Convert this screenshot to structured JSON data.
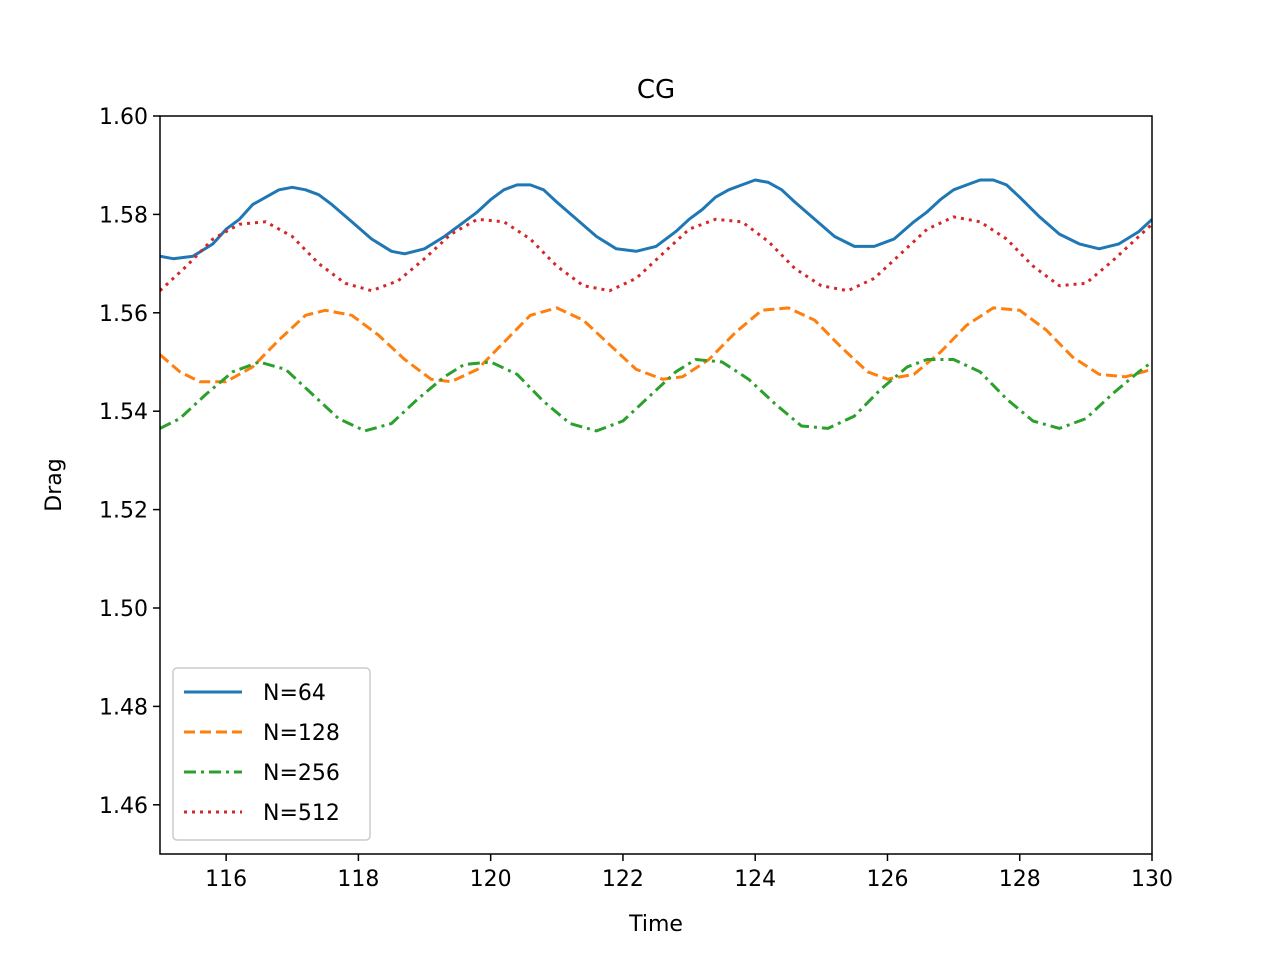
{
  "chart_data": {
    "type": "line",
    "title": "CG",
    "xlabel": "Time",
    "ylabel": "Drag",
    "xlim": [
      115,
      130
    ],
    "ylim": [
      1.45,
      1.6
    ],
    "xticks": [
      116,
      118,
      120,
      122,
      124,
      126,
      128,
      130
    ],
    "xtick_labels": [
      "116",
      "118",
      "120",
      "122",
      "124",
      "126",
      "128",
      "130"
    ],
    "yticks": [
      1.46,
      1.48,
      1.5,
      1.52,
      1.54,
      1.56,
      1.58,
      1.6
    ],
    "ytick_labels": [
      "1.46",
      "1.48",
      "1.50",
      "1.52",
      "1.54",
      "1.56",
      "1.58",
      "1.60"
    ],
    "grid": false,
    "legend_position": "lower-left",
    "series": [
      {
        "name": "N=64",
        "color": "#1f77b4",
        "dash": "solid",
        "x": [
          115.0,
          115.2,
          115.5,
          115.8,
          116.0,
          116.2,
          116.4,
          116.6,
          116.8,
          117.0,
          117.2,
          117.4,
          117.6,
          117.9,
          118.2,
          118.5,
          118.7,
          119.0,
          119.3,
          119.6,
          119.8,
          120.0,
          120.2,
          120.4,
          120.6,
          120.8,
          121.0,
          121.3,
          121.6,
          121.9,
          122.2,
          122.5,
          122.8,
          123.0,
          123.2,
          123.4,
          123.6,
          123.8,
          124.0,
          124.2,
          124.4,
          124.6,
          124.9,
          125.2,
          125.5,
          125.8,
          126.1,
          126.4,
          126.6,
          126.8,
          127.0,
          127.2,
          127.4,
          127.6,
          127.8,
          128.0,
          128.3,
          128.6,
          128.9,
          129.2,
          129.5,
          129.8,
          130.0
        ],
        "values": [
          1.5715,
          1.571,
          1.5715,
          1.574,
          1.577,
          1.579,
          1.582,
          1.5835,
          1.585,
          1.5855,
          1.585,
          1.584,
          1.582,
          1.5785,
          1.575,
          1.5725,
          1.572,
          1.573,
          1.5755,
          1.5785,
          1.5805,
          1.583,
          1.585,
          1.586,
          1.586,
          1.585,
          1.5825,
          1.579,
          1.5755,
          1.573,
          1.5725,
          1.5735,
          1.5765,
          1.579,
          1.581,
          1.5835,
          1.585,
          1.586,
          1.587,
          1.5865,
          1.585,
          1.5825,
          1.579,
          1.5755,
          1.5735,
          1.5735,
          1.575,
          1.5785,
          1.5805,
          1.583,
          1.585,
          1.586,
          1.587,
          1.587,
          1.586,
          1.5835,
          1.5795,
          1.576,
          1.574,
          1.573,
          1.574,
          1.5765,
          1.579
        ]
      },
      {
        "name": "N=128",
        "color": "#ff7f0e",
        "dash": "dashed",
        "x": [
          115.0,
          115.3,
          115.6,
          116.0,
          116.4,
          116.8,
          117.2,
          117.5,
          117.9,
          118.3,
          118.7,
          119.1,
          119.4,
          119.8,
          120.2,
          120.6,
          121.0,
          121.4,
          121.8,
          122.2,
          122.6,
          122.9,
          123.3,
          123.7,
          124.1,
          124.5,
          124.9,
          125.3,
          125.7,
          126.0,
          126.4,
          126.8,
          127.2,
          127.6,
          128.0,
          128.4,
          128.8,
          129.2,
          129.6,
          130.0
        ],
        "values": [
          1.5515,
          1.548,
          1.546,
          1.546,
          1.549,
          1.5545,
          1.5595,
          1.5605,
          1.5595,
          1.5555,
          1.5505,
          1.5465,
          1.546,
          1.5485,
          1.554,
          1.5595,
          1.561,
          1.5585,
          1.5535,
          1.5485,
          1.5465,
          1.547,
          1.5505,
          1.556,
          1.5605,
          1.561,
          1.5585,
          1.553,
          1.548,
          1.5465,
          1.5475,
          1.552,
          1.5575,
          1.561,
          1.5605,
          1.5565,
          1.551,
          1.5475,
          1.547,
          1.5485
        ]
      },
      {
        "name": "N=256",
        "color": "#2ca02c",
        "dash": "dashdot",
        "x": [
          115.0,
          115.3,
          115.7,
          116.1,
          116.5,
          116.9,
          117.3,
          117.7,
          118.1,
          118.5,
          118.9,
          119.3,
          119.6,
          120.0,
          120.4,
          120.8,
          121.2,
          121.6,
          122.0,
          122.4,
          122.8,
          123.1,
          123.5,
          123.9,
          124.3,
          124.7,
          125.1,
          125.5,
          125.9,
          126.3,
          126.6,
          127.0,
          127.4,
          127.8,
          128.2,
          128.6,
          129.0,
          129.4,
          129.8,
          130.0
        ],
        "values": [
          1.5365,
          1.5385,
          1.5435,
          1.548,
          1.55,
          1.5485,
          1.5435,
          1.5385,
          1.536,
          1.5375,
          1.5425,
          1.547,
          1.5495,
          1.55,
          1.5475,
          1.542,
          1.5375,
          1.536,
          1.538,
          1.543,
          1.548,
          1.5505,
          1.55,
          1.5465,
          1.5415,
          1.537,
          1.5365,
          1.539,
          1.5445,
          1.549,
          1.5505,
          1.5505,
          1.548,
          1.5425,
          1.538,
          1.5365,
          1.5385,
          1.5435,
          1.548,
          1.55
        ]
      },
      {
        "name": "N=512",
        "color": "#d62728",
        "dash": "dotted",
        "x": [
          115.0,
          115.4,
          115.8,
          116.2,
          116.6,
          117.0,
          117.4,
          117.8,
          118.2,
          118.6,
          119.0,
          119.4,
          119.8,
          120.2,
          120.6,
          121.0,
          121.4,
          121.8,
          122.2,
          122.6,
          123.0,
          123.4,
          123.8,
          124.2,
          124.6,
          125.0,
          125.4,
          125.8,
          126.2,
          126.6,
          127.0,
          127.4,
          127.8,
          128.2,
          128.6,
          129.0,
          129.4,
          129.8,
          130.0
        ],
        "values": [
          1.5645,
          1.5695,
          1.575,
          1.578,
          1.5785,
          1.5755,
          1.57,
          1.566,
          1.5645,
          1.5665,
          1.571,
          1.576,
          1.579,
          1.5785,
          1.575,
          1.5695,
          1.5655,
          1.5645,
          1.567,
          1.572,
          1.577,
          1.579,
          1.5785,
          1.5745,
          1.569,
          1.5655,
          1.5645,
          1.567,
          1.572,
          1.577,
          1.5795,
          1.5785,
          1.575,
          1.5695,
          1.5655,
          1.566,
          1.5705,
          1.5755,
          1.578
        ]
      }
    ]
  }
}
